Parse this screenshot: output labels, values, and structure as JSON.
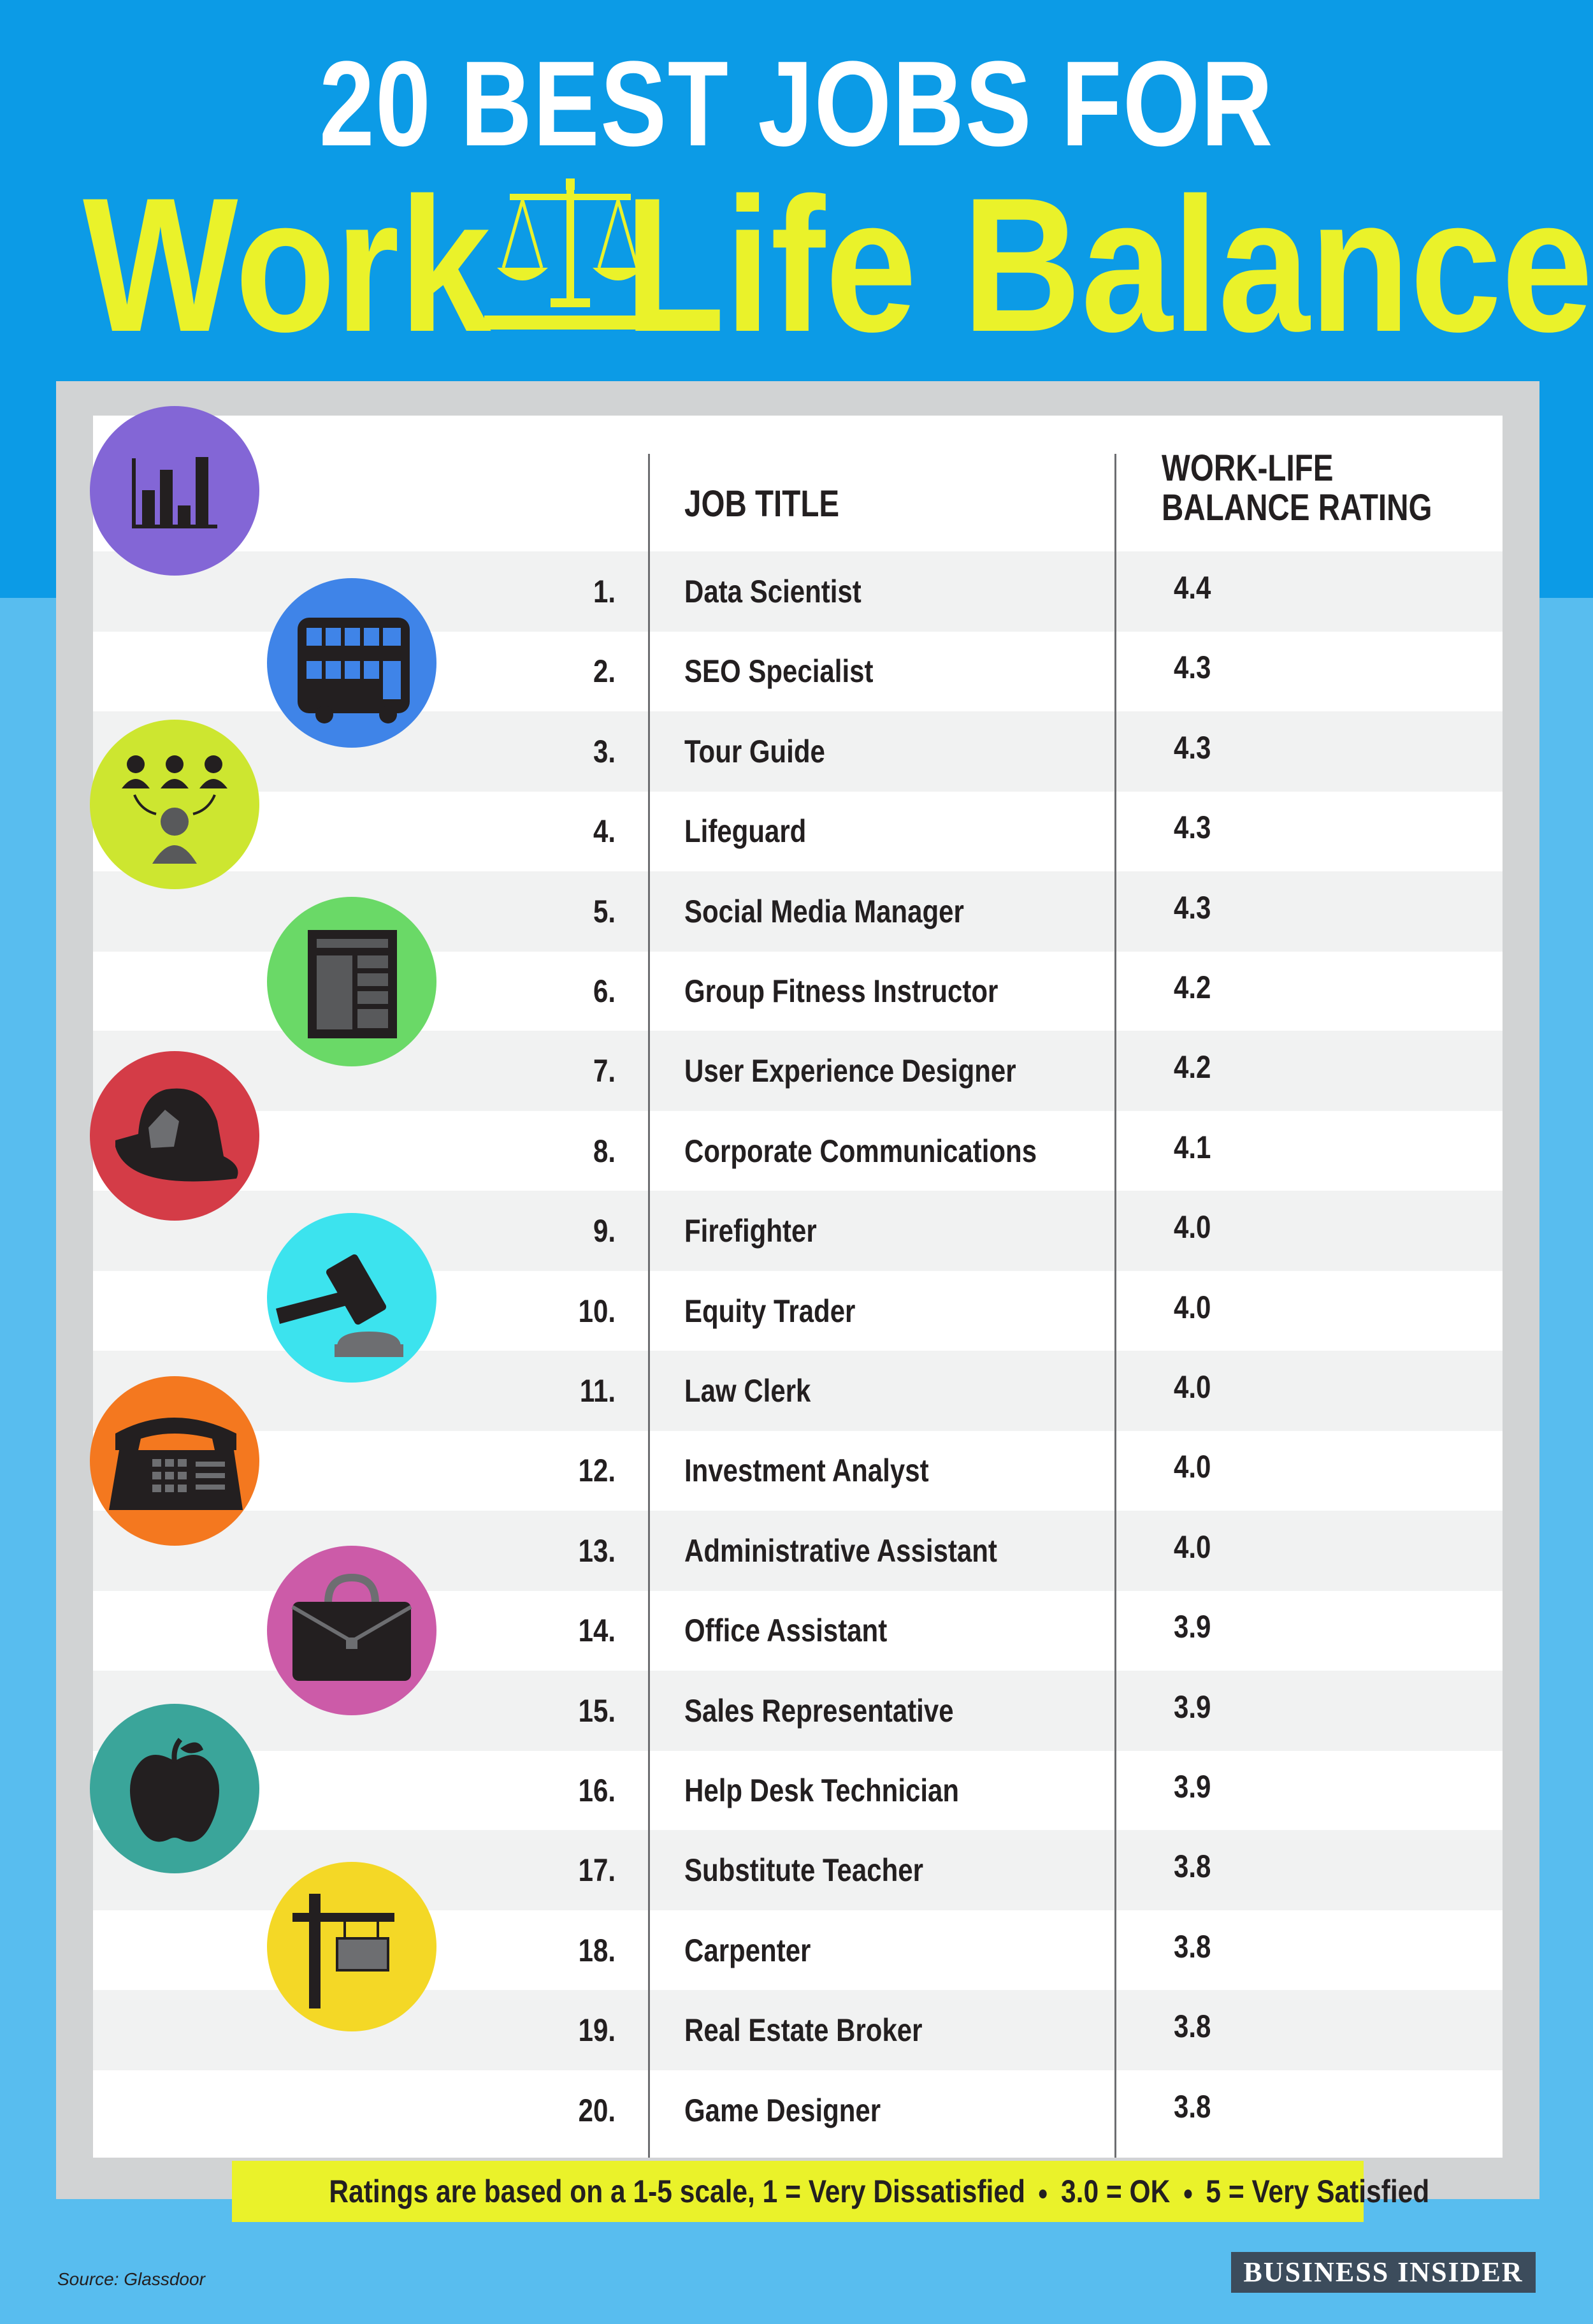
{
  "title": {
    "line1": "20 BEST JOBS FOR",
    "work": "Work",
    "life_balance": "Life Balance"
  },
  "table": {
    "header_job": "JOB TITLE",
    "header_rating_line1": "WORK-LIFE",
    "header_rating_line2": "BALANCE RATING",
    "rows": [
      {
        "num": "1.",
        "job": "Data Scientist",
        "rating": "4.4"
      },
      {
        "num": "2.",
        "job": "SEO Specialist",
        "rating": "4.3"
      },
      {
        "num": "3.",
        "job": "Tour Guide",
        "rating": "4.3"
      },
      {
        "num": "4.",
        "job": "Lifeguard",
        "rating": "4.3"
      },
      {
        "num": "5.",
        "job": "Social Media Manager",
        "rating": "4.3"
      },
      {
        "num": "6.",
        "job": "Group Fitness Instructor",
        "rating": "4.2"
      },
      {
        "num": "7.",
        "job": "User Experience Designer",
        "rating": "4.2"
      },
      {
        "num": "8.",
        "job": "Corporate Communications",
        "rating": "4.1"
      },
      {
        "num": "9.",
        "job": "Firefighter",
        "rating": "4.0"
      },
      {
        "num": "10.",
        "job": "Equity Trader",
        "rating": "4.0"
      },
      {
        "num": "11.",
        "job": "Law Clerk",
        "rating": "4.0"
      },
      {
        "num": "12.",
        "job": "Investment Analyst",
        "rating": "4.0"
      },
      {
        "num": "13.",
        "job": "Administrative Assistant",
        "rating": "4.0"
      },
      {
        "num": "14.",
        "job": "Office Assistant",
        "rating": "3.9"
      },
      {
        "num": "15.",
        "job": "Sales Representative",
        "rating": "3.9"
      },
      {
        "num": "16.",
        "job": "Help Desk Technician",
        "rating": "3.9"
      },
      {
        "num": "17.",
        "job": "Substitute Teacher",
        "rating": "3.8"
      },
      {
        "num": "18.",
        "job": "Carpenter",
        "rating": "3.8"
      },
      {
        "num": "19.",
        "job": "Real Estate Broker",
        "rating": "3.8"
      },
      {
        "num": "20.",
        "job": "Game Designer",
        "rating": "3.8"
      }
    ]
  },
  "icons": [
    {
      "name": "bar-chart-icon",
      "color": "#8366d6"
    },
    {
      "name": "bus-icon",
      "color": "#3f84e8"
    },
    {
      "name": "people-icon",
      "color": "#cde630"
    },
    {
      "name": "newspaper-icon",
      "color": "#6ad967"
    },
    {
      "name": "firefighter-helmet-icon",
      "color": "#d43c47"
    },
    {
      "name": "gavel-icon",
      "color": "#3ce3ee"
    },
    {
      "name": "telephone-icon",
      "color": "#f4781f"
    },
    {
      "name": "briefcase-icon",
      "color": "#cc5ba8"
    },
    {
      "name": "apple-icon",
      "color": "#3aa59a"
    },
    {
      "name": "signpost-icon",
      "color": "#f4d826"
    }
  ],
  "note": {
    "part1": "Ratings are based on a 1-5 scale,  1 = Very Dissatisfied",
    "part2": "3.0 = OK",
    "part3": "5 = Very Satisfied"
  },
  "footer": {
    "source": "Source: Glassdoor",
    "brand": "BUSINESS INSIDER"
  }
}
